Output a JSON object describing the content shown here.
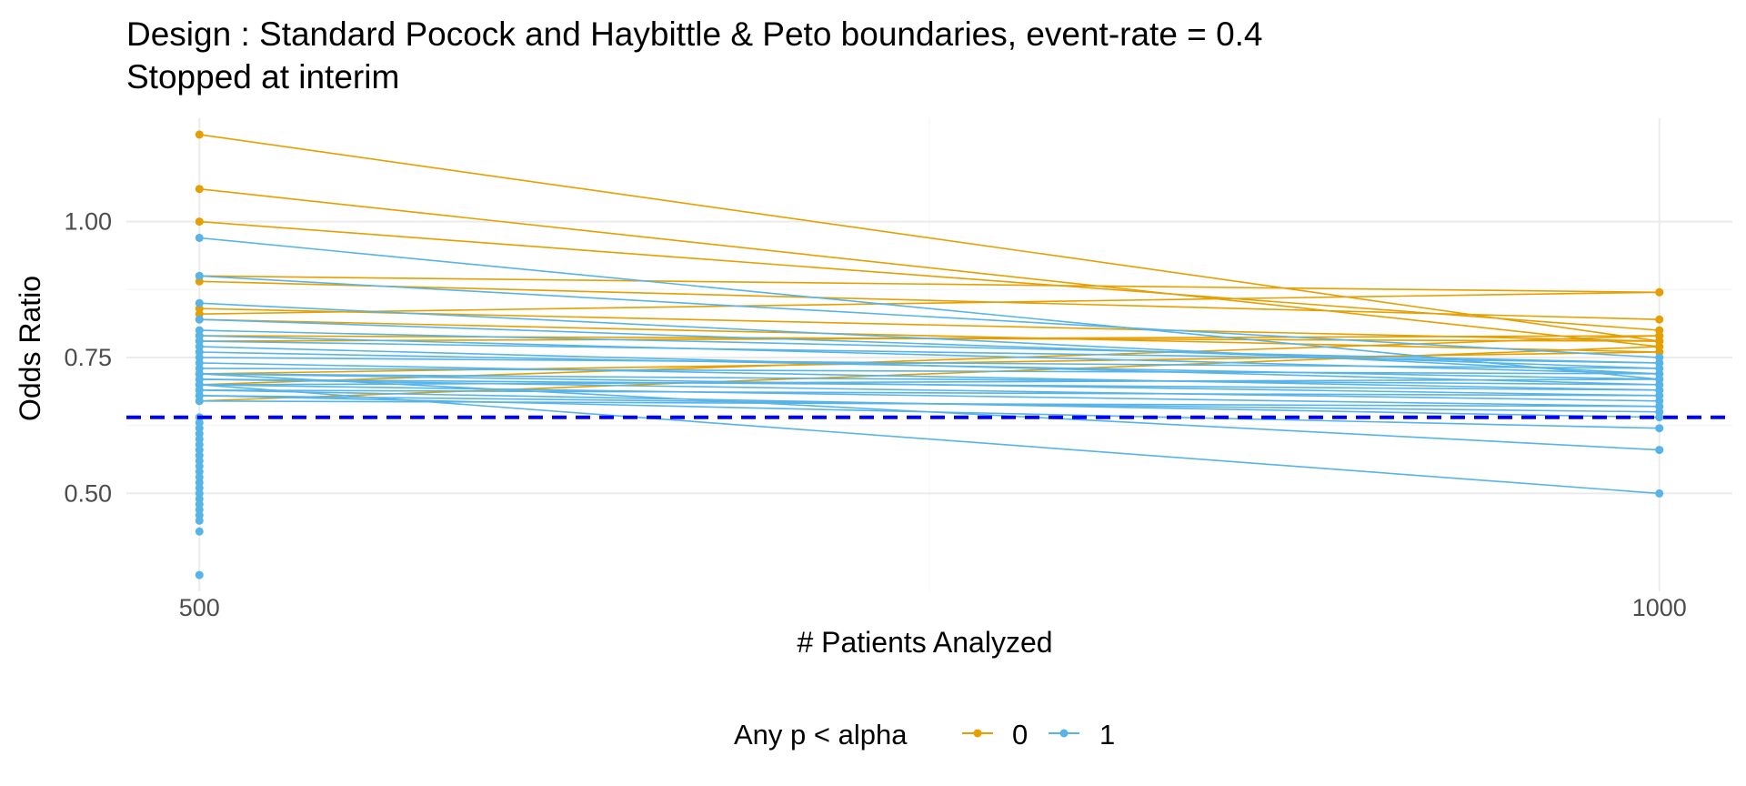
{
  "chart_data": {
    "type": "line",
    "title": "Design : Standard Pocock and Haybittle & Peto boundaries, event-rate = 0.4",
    "subtitle": "Stopped at interim",
    "xlabel": "# Patients Analyzed",
    "ylabel": "Odds Ratio",
    "x_ticks": [
      500,
      1000
    ],
    "x_tick_labels": [
      "500",
      "1000"
    ],
    "y_ticks": [
      0.5,
      0.75,
      1.0
    ],
    "y_tick_labels": [
      "0.50",
      "0.75",
      "1.00"
    ],
    "xlim": [
      475,
      1025
    ],
    "ylim": [
      0.32,
      1.19
    ],
    "grid": true,
    "reference_line": {
      "y": 0.64,
      "color": "#0000ff",
      "style": "dashed"
    },
    "legend": {
      "title": "Any p < alpha",
      "position": "bottom",
      "entries": [
        {
          "label": "0",
          "color": "#E69F00"
        },
        {
          "label": "1",
          "color": "#56B4E9"
        }
      ]
    },
    "series": [
      {
        "label": "0",
        "color": "#E69F00",
        "lines": [
          [
            1.16,
            0.78
          ],
          [
            1.06,
            0.77
          ],
          [
            1.0,
            0.8
          ],
          [
            0.9,
            0.87
          ],
          [
            0.89,
            0.82
          ],
          [
            0.84,
            0.78
          ],
          [
            0.83,
            0.87
          ],
          [
            0.82,
            0.76
          ],
          [
            0.79,
            0.78
          ],
          [
            0.78,
            0.79
          ],
          [
            0.72,
            0.76
          ],
          [
            0.7,
            0.79
          ],
          [
            0.67,
            0.77
          ]
        ],
        "stopped_at_interim": []
      },
      {
        "label": "1",
        "color": "#56B4E9",
        "lines": [
          [
            0.97,
            0.71
          ],
          [
            0.9,
            0.75
          ],
          [
            0.85,
            0.72
          ],
          [
            0.82,
            0.73
          ],
          [
            0.8,
            0.74
          ],
          [
            0.79,
            0.72
          ],
          [
            0.78,
            0.74
          ],
          [
            0.77,
            0.7
          ],
          [
            0.76,
            0.71
          ],
          [
            0.75,
            0.73
          ],
          [
            0.74,
            0.69
          ],
          [
            0.73,
            0.72
          ],
          [
            0.72,
            0.68
          ],
          [
            0.72,
            0.7
          ],
          [
            0.71,
            0.67
          ],
          [
            0.71,
            0.69
          ],
          [
            0.7,
            0.66
          ],
          [
            0.7,
            0.71
          ],
          [
            0.69,
            0.68
          ],
          [
            0.69,
            0.64
          ],
          [
            0.68,
            0.62
          ],
          [
            0.68,
            0.65
          ],
          [
            0.67,
            0.66
          ],
          [
            0.72,
            0.58
          ],
          [
            0.7,
            0.5
          ]
        ],
        "stopped_at_interim": [
          0.64,
          0.63,
          0.62,
          0.61,
          0.6,
          0.59,
          0.58,
          0.57,
          0.56,
          0.55,
          0.54,
          0.53,
          0.52,
          0.51,
          0.5,
          0.49,
          0.48,
          0.47,
          0.46,
          0.45,
          0.43,
          0.35
        ]
      }
    ]
  }
}
